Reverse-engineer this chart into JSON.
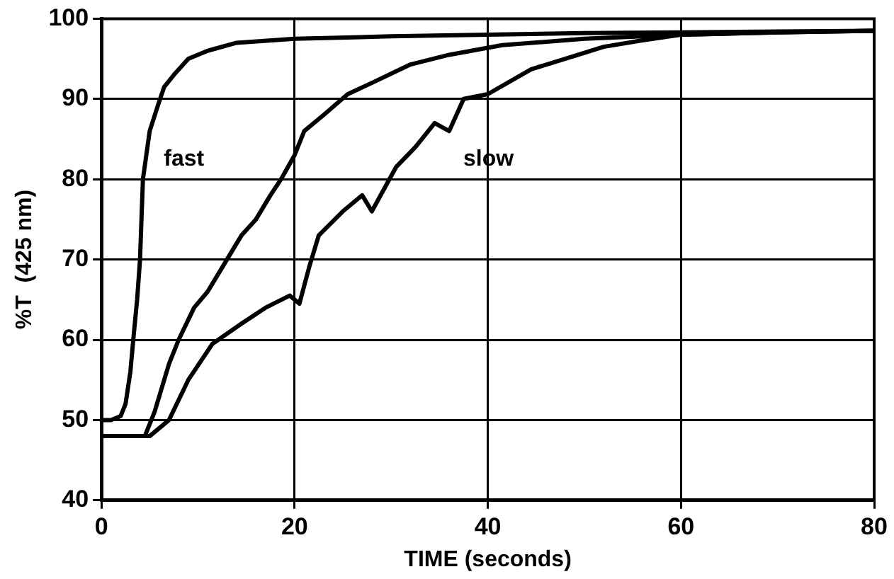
{
  "chart_data": {
    "type": "line",
    "xlabel": "TIME (seconds)",
    "ylabel": "%T  (425 nm)",
    "xlim": [
      0,
      80
    ],
    "xticks": [
      0,
      20,
      40,
      60,
      80
    ],
    "ylim": [
      40,
      100
    ],
    "yticks": [
      40,
      50,
      60,
      70,
      80,
      90,
      100
    ],
    "grid": true,
    "legend": false,
    "marker": "none",
    "line_style": "solid",
    "series": [
      {
        "name": "fast",
        "color": "#000000",
        "x": [
          0,
          1,
          2,
          2.5,
          3,
          3.3,
          3.7,
          4,
          4.3,
          5,
          5.8,
          6.5,
          7.5,
          9,
          11,
          14,
          20,
          30,
          40,
          50,
          60,
          70,
          80
        ],
        "values": [
          50,
          50,
          50.5,
          52,
          56,
          60,
          65,
          70,
          80,
          86,
          89,
          91.5,
          93,
          95,
          96,
          97,
          97.5,
          97.8,
          98,
          98.2,
          98.3,
          98.4,
          98.5
        ]
      },
      {
        "color": "#000000",
        "x": [
          0,
          2,
          4.5,
          5.5,
          7,
          8,
          9.6,
          11,
          13,
          14.5,
          16,
          17.5,
          18.6,
          20,
          21,
          23,
          25.5,
          28,
          32,
          36,
          41.5,
          50,
          60,
          70,
          80
        ],
        "values": [
          48,
          48,
          48,
          51,
          57,
          60,
          64,
          66,
          70,
          73,
          75,
          78,
          80,
          83,
          86,
          88,
          90.6,
          92,
          94.3,
          95.5,
          96.7,
          97.5,
          98,
          98.3,
          98.5
        ]
      },
      {
        "name": "slow",
        "color": "#000000",
        "x": [
          0,
          3,
          5,
          7,
          9,
          11.5,
          14.5,
          17,
          19.5,
          20.5,
          21.5,
          22.5,
          25,
          27,
          28,
          30.5,
          32.5,
          34.5,
          36,
          37.5,
          40,
          44.5,
          48,
          52,
          56,
          60,
          70,
          80
        ],
        "values": [
          48,
          48,
          48,
          50,
          55,
          59.5,
          62,
          64,
          65.5,
          64.5,
          69,
          73,
          76,
          78,
          76,
          81.5,
          84,
          87,
          86,
          90,
          90.6,
          93.7,
          95,
          96.5,
          97.3,
          98,
          98.3,
          98.5
        ]
      }
    ]
  }
}
